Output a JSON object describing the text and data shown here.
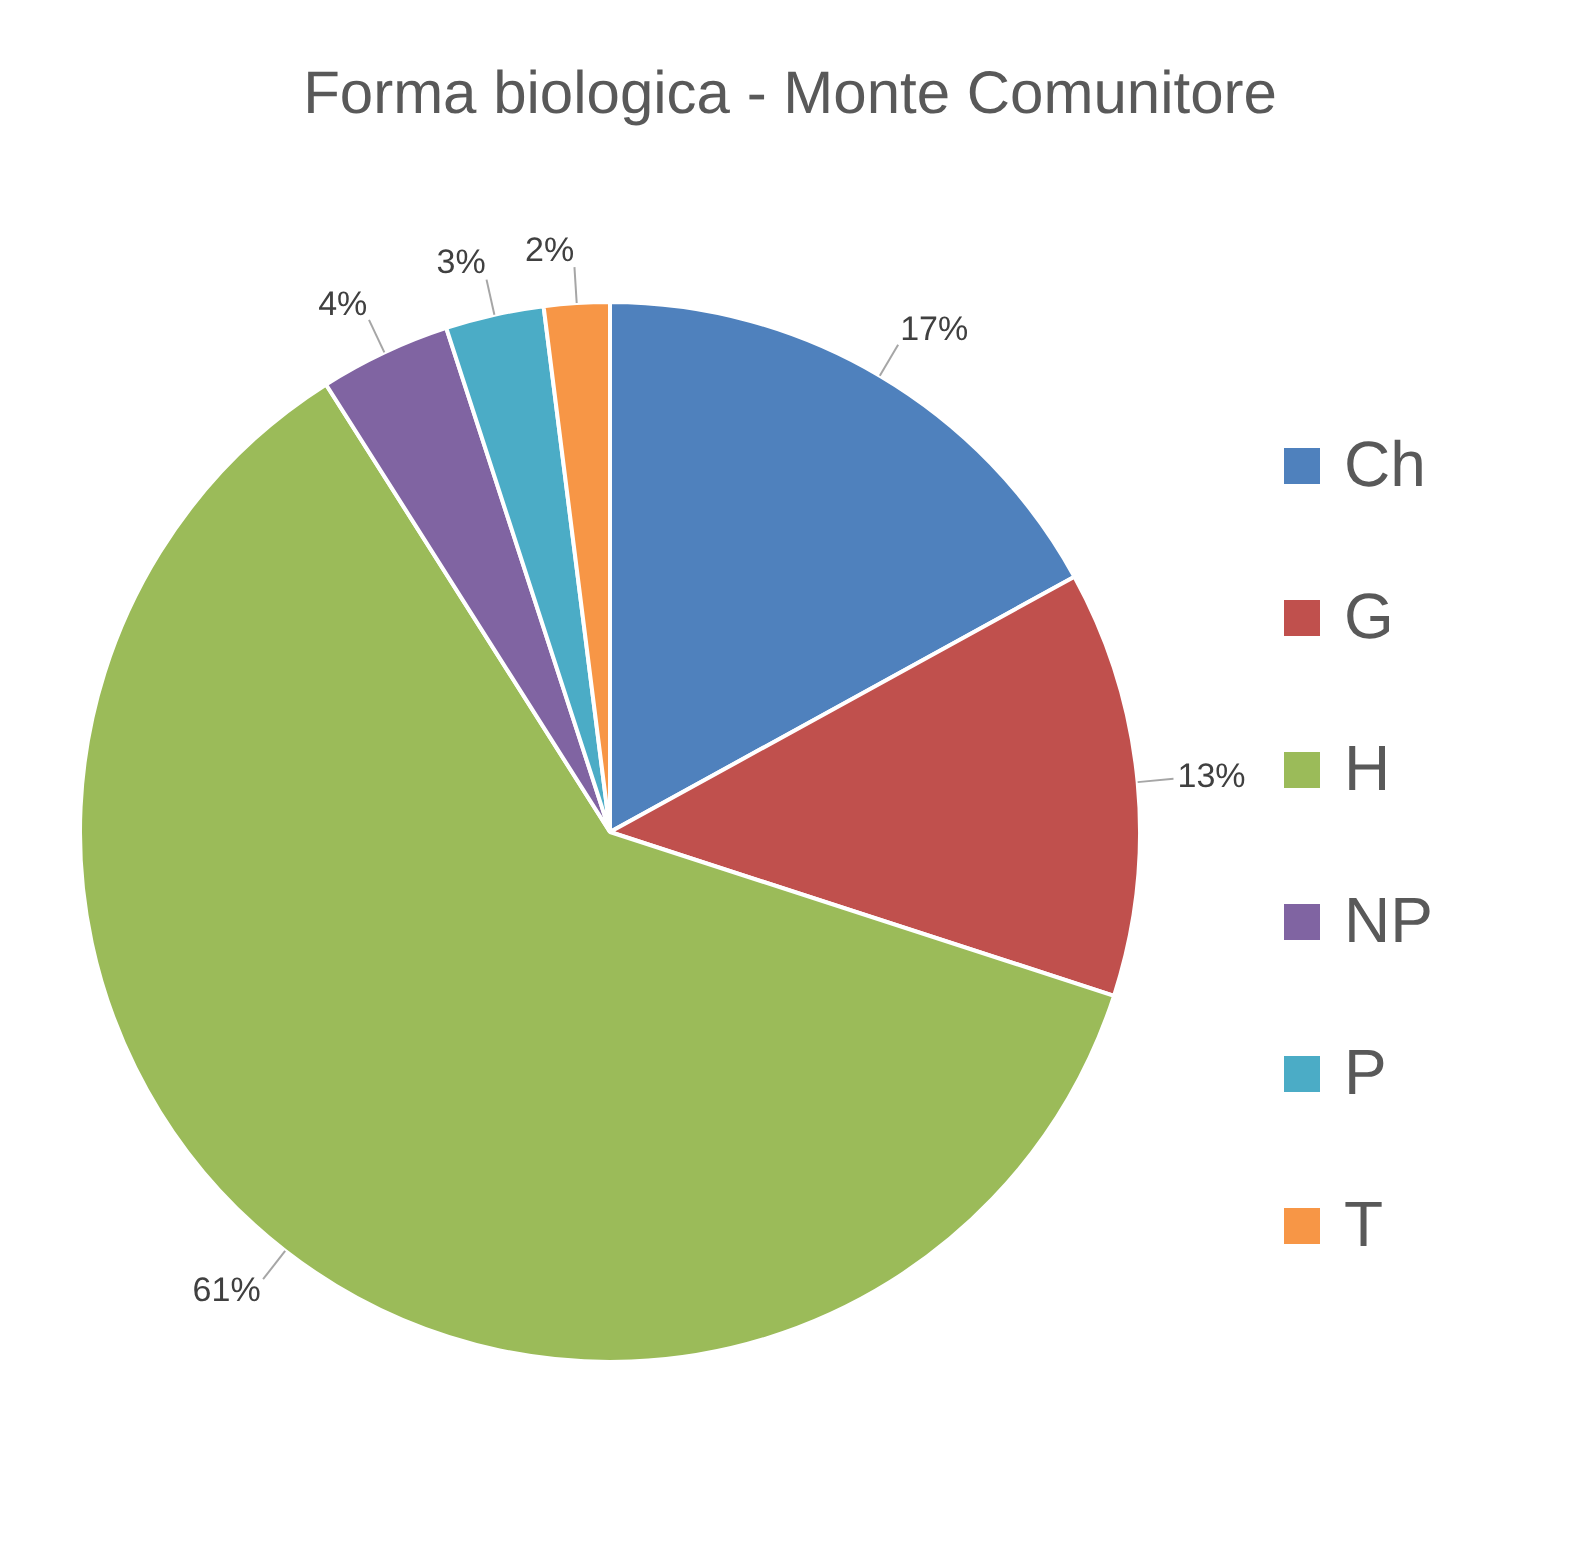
{
  "chart_data": {
    "type": "pie",
    "title": "Forma biologica - Monte Comunitore",
    "categories": [
      "Ch",
      "G",
      "H",
      "NP",
      "P",
      "T"
    ],
    "values": [
      17,
      13,
      61,
      4,
      3,
      2
    ],
    "colors": [
      "#4f81bd",
      "#c0504d",
      "#9bbb59",
      "#8064a2",
      "#4bacc6",
      "#f79646"
    ],
    "value_labels": [
      "17%",
      "13%",
      "61%",
      "4%",
      "3%",
      "2%"
    ],
    "legend": "right"
  }
}
